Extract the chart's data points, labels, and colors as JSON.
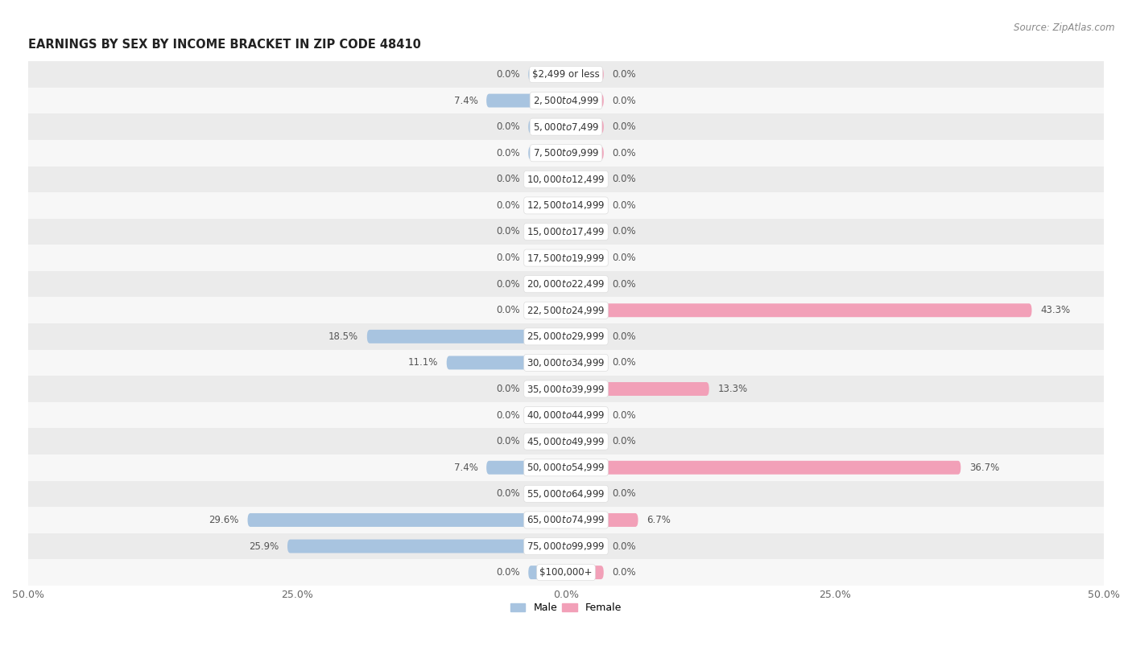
{
  "title": "EARNINGS BY SEX BY INCOME BRACKET IN ZIP CODE 48410",
  "source": "Source: ZipAtlas.com",
  "categories": [
    "$2,499 or less",
    "$2,500 to $4,999",
    "$5,000 to $7,499",
    "$7,500 to $9,999",
    "$10,000 to $12,499",
    "$12,500 to $14,999",
    "$15,000 to $17,499",
    "$17,500 to $19,999",
    "$20,000 to $22,499",
    "$22,500 to $24,999",
    "$25,000 to $29,999",
    "$30,000 to $34,999",
    "$35,000 to $39,999",
    "$40,000 to $44,999",
    "$45,000 to $49,999",
    "$50,000 to $54,999",
    "$55,000 to $64,999",
    "$65,000 to $74,999",
    "$75,000 to $99,999",
    "$100,000+"
  ],
  "male_values": [
    0.0,
    7.4,
    0.0,
    0.0,
    0.0,
    0.0,
    0.0,
    0.0,
    0.0,
    0.0,
    18.5,
    11.1,
    0.0,
    0.0,
    0.0,
    7.4,
    0.0,
    29.6,
    25.9,
    0.0
  ],
  "female_values": [
    0.0,
    0.0,
    0.0,
    0.0,
    0.0,
    0.0,
    0.0,
    0.0,
    0.0,
    43.3,
    0.0,
    0.0,
    13.3,
    0.0,
    0.0,
    36.7,
    0.0,
    6.7,
    0.0,
    0.0
  ],
  "male_color": "#a8c4e0",
  "female_color": "#f2a0b8",
  "male_label": "Male",
  "female_label": "Female",
  "xlim": 50.0,
  "bar_height": 0.52,
  "min_bar_width": 3.5,
  "bg_color_odd": "#ebebeb",
  "bg_color_even": "#f7f7f7",
  "title_fontsize": 10.5,
  "source_fontsize": 8.5,
  "label_fontsize": 8.5,
  "tick_fontsize": 9,
  "legend_fontsize": 9
}
